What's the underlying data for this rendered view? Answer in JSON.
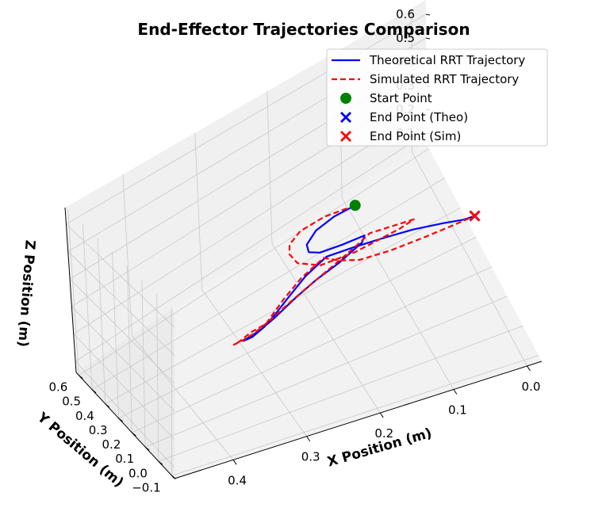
{
  "chart_data": {
    "type": "line",
    "projection": "3d",
    "title": "End-Effector Trajectories Comparison",
    "xlabel": "X Position (m)",
    "ylabel": "Y Position (m)",
    "zlabel": "Z Position (m)",
    "xlim": [
      -0.02,
      0.48
    ],
    "ylim": [
      -0.12,
      0.62
    ],
    "zlim": [
      0.06,
      0.66
    ],
    "xticks": [
      "0.0",
      "0.1",
      "0.2",
      "0.3",
      "0.4"
    ],
    "yticks": [
      "−0.1",
      "0.0",
      "0.1",
      "0.2",
      "0.3",
      "0.4",
      "0.5",
      "0.6"
    ],
    "zticks": [
      "0.1",
      "0.2",
      "0.3",
      "0.4",
      "0.5",
      "0.6"
    ],
    "grid": true,
    "legend_position": "top-right",
    "series": [
      {
        "name": "Theoretical RRT Trajectory",
        "color": "#0000ff",
        "style": "solid",
        "points": [
          [
            0.2,
            0.08,
            0.66
          ],
          [
            0.228,
            0.08,
            0.647
          ],
          [
            0.252,
            0.08,
            0.62
          ],
          [
            0.264,
            0.08,
            0.58
          ],
          [
            0.26,
            0.085,
            0.545
          ],
          [
            0.245,
            0.085,
            0.528
          ],
          [
            0.215,
            0.085,
            0.526
          ],
          [
            0.185,
            0.085,
            0.529
          ],
          [
            0.185,
            0.1,
            0.49
          ],
          [
            0.205,
            0.15,
            0.395
          ],
          [
            0.225,
            0.2,
            0.315
          ],
          [
            0.245,
            0.24,
            0.24
          ],
          [
            0.268,
            0.275,
            0.165
          ],
          [
            0.282,
            0.31,
            0.11
          ],
          [
            0.292,
            0.34,
            0.075
          ],
          [
            0.296,
            0.345,
            0.067
          ],
          [
            0.286,
            0.335,
            0.075
          ],
          [
            0.272,
            0.32,
            0.105
          ],
          [
            0.262,
            0.3,
            0.15
          ],
          [
            0.25,
            0.27,
            0.22
          ],
          [
            0.232,
            0.235,
            0.31
          ],
          [
            0.21,
            0.205,
            0.38
          ],
          [
            0.172,
            0.21,
            0.365
          ],
          [
            0.132,
            0.215,
            0.345
          ],
          [
            0.088,
            0.22,
            0.32
          ],
          [
            0.045,
            0.225,
            0.285
          ],
          [
            0.015,
            0.23,
            0.255
          ],
          [
            0.0,
            0.23,
            0.25
          ]
        ]
      },
      {
        "name": "Simulated RRT Trajectory",
        "color": "#ff0000",
        "style": "dashed",
        "points": [
          [
            0.2,
            0.08,
            0.66
          ],
          [
            0.24,
            0.085,
            0.655
          ],
          [
            0.272,
            0.085,
            0.635
          ],
          [
            0.286,
            0.085,
            0.6
          ],
          [
            0.285,
            0.09,
            0.56
          ],
          [
            0.275,
            0.085,
            0.52
          ],
          [
            0.245,
            0.08,
            0.485
          ],
          [
            0.2,
            0.075,
            0.49
          ],
          [
            0.14,
            0.075,
            0.515
          ],
          [
            0.12,
            0.08,
            0.525
          ],
          [
            0.15,
            0.08,
            0.53
          ],
          [
            0.178,
            0.085,
            0.53
          ],
          [
            0.192,
            0.105,
            0.48
          ],
          [
            0.21,
            0.155,
            0.39
          ],
          [
            0.228,
            0.205,
            0.305
          ],
          [
            0.25,
            0.245,
            0.23
          ],
          [
            0.272,
            0.28,
            0.16
          ],
          [
            0.288,
            0.315,
            0.105
          ],
          [
            0.3,
            0.345,
            0.07
          ],
          [
            0.308,
            0.355,
            0.062
          ],
          [
            0.302,
            0.345,
            0.073
          ],
          [
            0.288,
            0.332,
            0.098
          ],
          [
            0.27,
            0.318,
            0.115
          ],
          [
            0.265,
            0.3,
            0.155
          ],
          [
            0.255,
            0.27,
            0.225
          ],
          [
            0.238,
            0.235,
            0.31
          ],
          [
            0.214,
            0.205,
            0.38
          ],
          [
            0.194,
            0.195,
            0.355
          ],
          [
            0.165,
            0.2,
            0.318
          ],
          [
            0.12,
            0.21,
            0.29
          ],
          [
            0.072,
            0.22,
            0.27
          ],
          [
            0.03,
            0.228,
            0.255
          ],
          [
            0.0,
            0.23,
            0.25
          ]
        ]
      }
    ],
    "markers": [
      {
        "name": "Start Point",
        "symbol": "circle",
        "color": "#008000",
        "point": [
          0.2,
          0.08,
          0.66
        ]
      },
      {
        "name": "End Point (Theo)",
        "symbol": "x",
        "color": "#0000ff",
        "point": [
          0.0,
          0.23,
          0.25
        ]
      },
      {
        "name": "End Point (Sim)",
        "symbol": "x",
        "color": "#ff0000",
        "point": [
          0.0,
          0.23,
          0.25
        ]
      }
    ]
  }
}
